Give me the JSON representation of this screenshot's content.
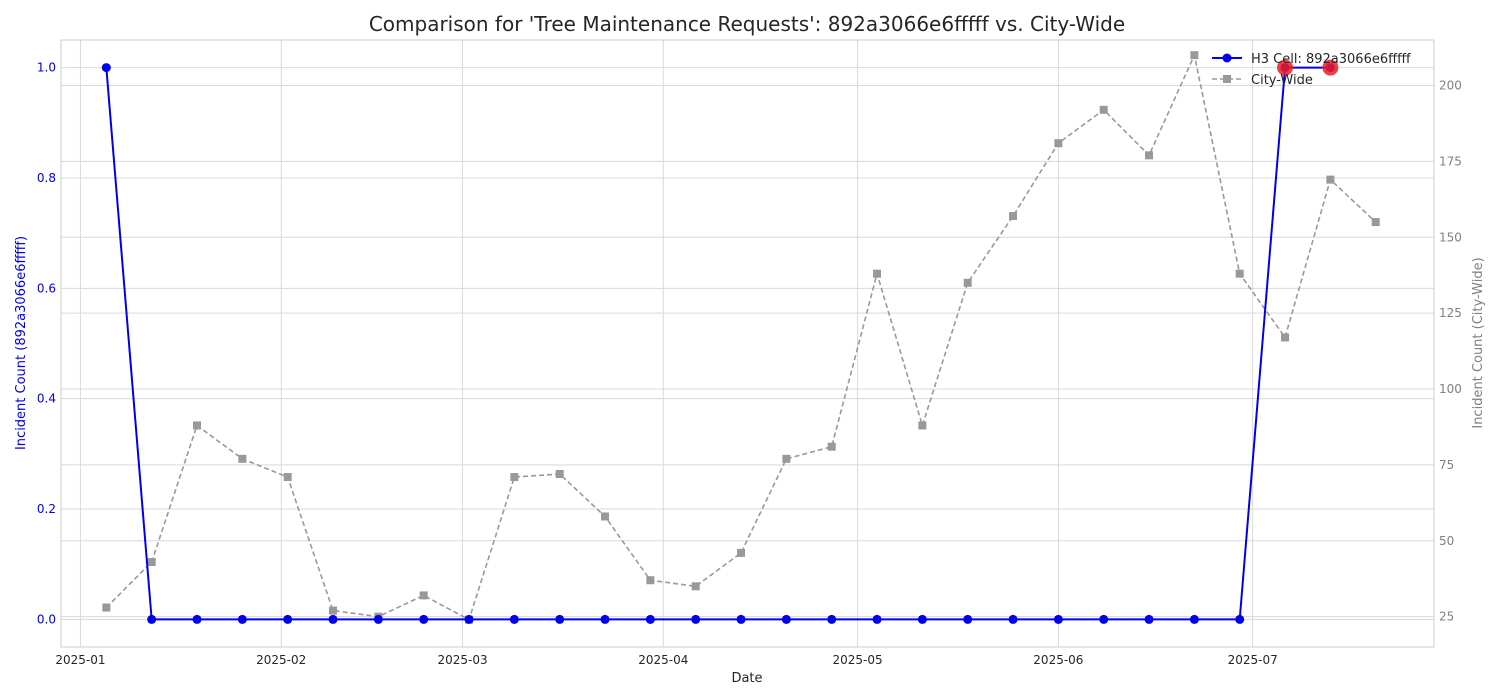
{
  "chart_data": {
    "type": "line",
    "title": "Comparison for 'Tree Maintenance Requests': 892a3066e6fffff vs. City-Wide",
    "xlabel": "Date",
    "ylabel_left": "Incident Count (892a3066e6fffff)",
    "ylabel_right": "Incident Count (City-Wide)",
    "x_tick_labels": [
      "2025-01",
      "2025-02",
      "2025-03",
      "2025-04",
      "2025-05",
      "2025-06",
      "2025-07"
    ],
    "y_left_ticks": [
      "0.0",
      "0.2",
      "0.4",
      "0.6",
      "0.8",
      "1.0"
    ],
    "y_right_ticks": [
      "25",
      "50",
      "75",
      "100",
      "125",
      "150",
      "175",
      "200"
    ],
    "ylim_left": [
      -0.05,
      1.05
    ],
    "ylim_right": [
      15,
      215
    ],
    "grid": true,
    "legend_position": "top-right",
    "colors": {
      "cell": "#0000ee",
      "city": "#999999",
      "highlight": "#ee1c25",
      "left_axis": "#0000ee",
      "right_axis": "#808080"
    },
    "series": [
      {
        "name": "H3 Cell: 892a3066e6fffff",
        "axis": "left",
        "style": "solid-circle",
        "x": [
          "2025-01-05",
          "2025-01-12",
          "2025-01-19",
          "2025-01-26",
          "2025-02-02",
          "2025-02-09",
          "2025-02-16",
          "2025-02-23",
          "2025-03-02",
          "2025-03-09",
          "2025-03-16",
          "2025-03-23",
          "2025-03-30",
          "2025-04-06",
          "2025-04-13",
          "2025-04-20",
          "2025-04-27",
          "2025-05-04",
          "2025-05-11",
          "2025-05-18",
          "2025-05-25",
          "2025-06-01",
          "2025-06-08",
          "2025-06-15",
          "2025-06-22",
          "2025-06-29",
          "2025-07-06",
          "2025-07-13"
        ],
        "values": [
          1,
          0,
          0,
          0,
          0,
          0,
          0,
          0,
          0,
          0,
          0,
          0,
          0,
          0,
          0,
          0,
          0,
          0,
          0,
          0,
          0,
          0,
          0,
          0,
          0,
          0,
          1,
          1
        ],
        "highlighted_x": [
          "2025-07-06",
          "2025-07-13"
        ]
      },
      {
        "name": "City-Wide",
        "axis": "right",
        "style": "dashed-square",
        "x": [
          "2025-01-05",
          "2025-01-12",
          "2025-01-19",
          "2025-01-26",
          "2025-02-02",
          "2025-02-09",
          "2025-02-16",
          "2025-02-23",
          "2025-03-02",
          "2025-03-09",
          "2025-03-16",
          "2025-03-23",
          "2025-03-30",
          "2025-04-06",
          "2025-04-13",
          "2025-04-20",
          "2025-04-27",
          "2025-05-04",
          "2025-05-11",
          "2025-05-18",
          "2025-05-25",
          "2025-06-01",
          "2025-06-08",
          "2025-06-15",
          "2025-06-22",
          "2025-06-29",
          "2025-07-06",
          "2025-07-13",
          "2025-07-20"
        ],
        "values": [
          28,
          43,
          88,
          77,
          71,
          27,
          25,
          32,
          24,
          71,
          72,
          58,
          37,
          35,
          46,
          77,
          81,
          138,
          88,
          135,
          157,
          181,
          192,
          177,
          210,
          138,
          117,
          169,
          155
        ]
      }
    ]
  }
}
